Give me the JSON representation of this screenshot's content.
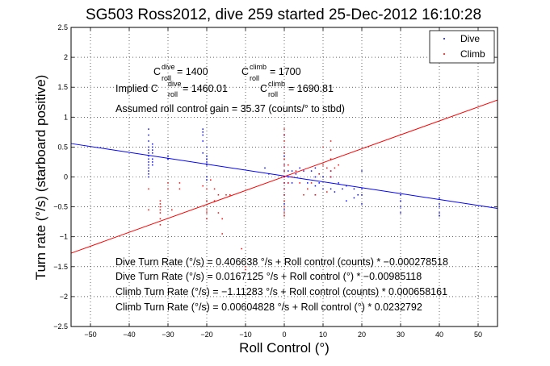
{
  "chart_data": {
    "type": "scatter",
    "title": "SG503 Ross2012, dive 259 started 25-Dec-2012 16:10:28",
    "xlabel": "Roll Control (°)",
    "ylabel": "Turn rate (°/s) (starboard positive)",
    "xlim": [
      -55,
      55
    ],
    "ylim": [
      -2.5,
      2.5
    ],
    "xticks": [
      -50,
      -40,
      -30,
      -20,
      -10,
      0,
      10,
      20,
      30,
      40,
      50
    ],
    "yticks": [
      -2.5,
      -2,
      -1.5,
      -1,
      -0.5,
      0,
      0.5,
      1,
      1.5,
      2,
      2.5
    ],
    "xtick_labels": [
      "−50",
      "−40",
      "−30",
      "−20",
      "−10",
      "0",
      "10",
      "20",
      "30",
      "40",
      "50"
    ],
    "ytick_labels": [
      "−2.5",
      "−2",
      "−1.5",
      "−1",
      "−0.5",
      "0",
      "0.5",
      "1",
      "1.5",
      "2",
      "2.5"
    ],
    "grid": true,
    "legend_position": "top-right",
    "series": [
      {
        "name": "Dive",
        "color": "#0000ff",
        "marker": "point",
        "x": [
          -35,
          -35,
          -35,
          -35,
          -35,
          -35,
          -35,
          -35,
          -35,
          -35,
          -35,
          -35,
          -34,
          -34,
          -34,
          -34,
          -34,
          -34,
          -34,
          -35,
          -35,
          -30,
          -30,
          -21,
          -21,
          -21,
          -21,
          -21,
          -20,
          -20,
          -20,
          -20,
          -20,
          -20,
          -20,
          -5,
          -4,
          0,
          0,
          0,
          0,
          0,
          0,
          0,
          0,
          0,
          0,
          0,
          1,
          1,
          1,
          2,
          2,
          3,
          4,
          5,
          6,
          7,
          8,
          8,
          8,
          8,
          9,
          9,
          10,
          10,
          12,
          12,
          12,
          13,
          14,
          15,
          16,
          16,
          18,
          18,
          19,
          20,
          20,
          20,
          20,
          30,
          30,
          30,
          30,
          40,
          40,
          40,
          40,
          40
        ],
        "y": [
          0.8,
          0.7,
          0.6,
          0.5,
          0.45,
          0.4,
          0.35,
          0.3,
          0.25,
          0.2,
          0.1,
          0.05,
          0.55,
          0.5,
          0.45,
          0.4,
          0.3,
          0.25,
          0.2,
          0.0,
          0.15,
          0.35,
          0.3,
          0.8,
          0.75,
          0.7,
          0.6,
          0.4,
          0.35,
          0.3,
          0.25,
          0.2,
          0.0,
          -0.05,
          0.5,
          0.15,
          0.05,
          0.7,
          0.5,
          0.35,
          0.2,
          0.1,
          0.0,
          -0.1,
          -0.2,
          -0.3,
          -0.45,
          -0.55,
          0.1,
          0.0,
          -0.1,
          0.1,
          -0.1,
          0.05,
          0.15,
          0.1,
          -0.1,
          0.1,
          0.15,
          0.0,
          -0.15,
          -0.3,
          0.05,
          -0.1,
          0.0,
          -0.2,
          0.1,
          0.0,
          -0.2,
          -0.25,
          -0.1,
          -0.2,
          -0.15,
          -0.4,
          -0.2,
          -0.35,
          -0.3,
          0.1,
          -0.2,
          -0.3,
          -0.45,
          -0.3,
          -0.4,
          -0.5,
          -0.6,
          -0.35,
          -0.45,
          -0.5,
          -0.6,
          -0.65
        ]
      },
      {
        "name": "Climb",
        "color": "#ff0000",
        "marker": "point",
        "x": [
          -35,
          -35,
          -32,
          -32,
          -32,
          -32,
          -32,
          -32,
          -32,
          -30,
          -30,
          -29,
          -27,
          -27,
          -21,
          -20,
          -20,
          -20,
          -20,
          -20,
          -19,
          -18,
          -18,
          -17,
          -17,
          -16,
          -16,
          -15,
          -14,
          -11,
          -10,
          -10,
          0,
          0,
          0,
          0,
          0,
          0,
          0,
          0,
          0,
          0,
          0,
          0,
          0,
          0,
          0,
          0,
          1,
          1,
          2,
          3,
          4,
          5,
          6,
          7,
          8,
          9,
          10,
          10,
          11,
          11,
          12,
          12,
          12,
          12,
          12,
          13,
          14
        ],
        "y": [
          -0.55,
          -0.2,
          -0.4,
          -0.45,
          -0.5,
          -0.55,
          -0.6,
          -0.7,
          -0.8,
          -0.1,
          -0.2,
          -0.55,
          -0.1,
          -0.2,
          -0.15,
          -0.2,
          -0.4,
          -0.55,
          -0.6,
          -0.7,
          -0.05,
          -0.2,
          -0.4,
          -0.3,
          -0.6,
          -0.7,
          -0.95,
          -0.3,
          -0.3,
          -1.2,
          -1.5,
          -1.55,
          0.8,
          0.7,
          0.6,
          0.5,
          0.4,
          0.3,
          0.2,
          0.1,
          0.0,
          -0.1,
          -0.2,
          -0.3,
          -0.4,
          -0.5,
          -0.6,
          -0.65,
          0.2,
          -0.1,
          0.0,
          0.1,
          -0.1,
          -0.3,
          -0.2,
          -0.1,
          -0.3,
          0.05,
          0.5,
          0.2,
          0.15,
          -0.25,
          0.6,
          0.45,
          0.3,
          0.1,
          0.0,
          0.15,
          0.2
        ]
      }
    ],
    "fit_lines": [
      {
        "series": "Dive",
        "color": "#0000ff",
        "slope": -0.00985118,
        "intercept": 0.0167125
      },
      {
        "series": "Climb",
        "color": "#ff0000",
        "slope": 0.0232792,
        "intercept": 0.00604828
      }
    ],
    "annotations": {
      "c_dive_base": "C",
      "c_dive_sup": "dive",
      "c_dive_sub": "roll",
      "c_dive_val": " = 1400",
      "c_climb_base": "C",
      "c_climb_sup": "climb",
      "c_climb_sub": "roll",
      "c_climb_val": " = 1700",
      "implied_prefix": "Implied C",
      "implied_dive_sup": "dive",
      "implied_dive_sub": "roll",
      "implied_dive_val": " = 1460.01",
      "implied_climb_base": "C",
      "implied_climb_sup": "climb",
      "implied_climb_sub": "roll",
      "implied_climb_val": " = 1690.81",
      "gain": "Assumed roll control gain = 35.37 (counts/° to stbd)",
      "eq1": "Dive Turn Rate (°/s) = 0.406638 °/s + Roll control (counts) * −0.000278518",
      "eq2": "Dive Turn Rate (°/s) = 0.0167125 °/s + Roll control (°) * −0.00985118",
      "eq3": "Climb Turn Rate (°/s) = −1.11283 °/s + Roll control (counts) * 0.000658161",
      "eq4": "Climb Turn Rate (°/s) = 0.00604828 °/s + Roll control (°) * 0.0232792"
    }
  }
}
